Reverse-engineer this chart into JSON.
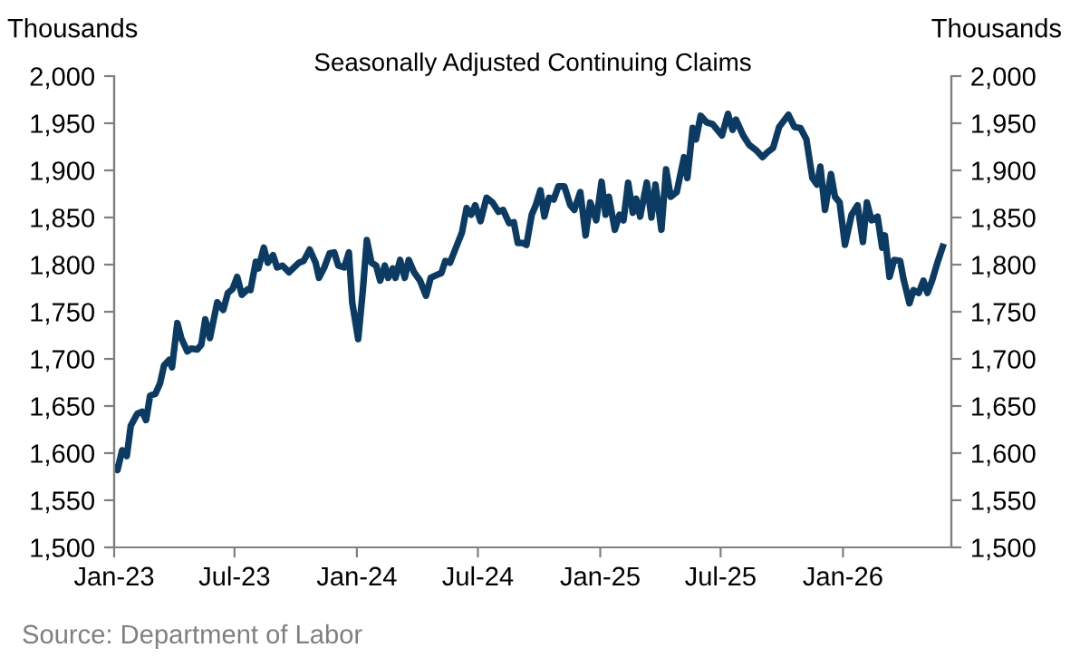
{
  "chart_data": {
    "type": "line",
    "title": "Seasonally Adjusted Continuing Claims",
    "ylabel": "Thousands",
    "y2label": "Thousands",
    "x": [
      "2023-01-01",
      "2023-01-06",
      "2023-01-13",
      "2023-01-20",
      "2023-01-26",
      "2023-02-05",
      "2023-02-12",
      "2023-02-18",
      "2023-02-24",
      "2023-03-04",
      "2023-03-11",
      "2023-03-17",
      "2023-03-25",
      "2023-03-29",
      "2023-04-06",
      "2023-04-12",
      "2023-04-21",
      "2023-04-27",
      "2023-05-06",
      "2023-05-12",
      "2023-05-18",
      "2023-05-25",
      "2023-06-05",
      "2023-06-14",
      "2023-06-21",
      "2023-06-28",
      "2023-07-05",
      "2023-07-12",
      "2023-07-21",
      "2023-07-25",
      "2023-08-02",
      "2023-08-06",
      "2023-08-14",
      "2023-08-20",
      "2023-08-28",
      "2023-09-03",
      "2023-09-11",
      "2023-09-21",
      "2023-09-27",
      "2023-10-06",
      "2023-10-13",
      "2023-10-22",
      "2023-10-31",
      "2023-11-05",
      "2023-11-13",
      "2023-11-21",
      "2023-11-28",
      "2023-12-04",
      "2023-12-13",
      "2023-12-20",
      "2023-12-25",
      "2024-01-03",
      "2024-01-10",
      "2024-01-16",
      "2024-01-23",
      "2024-01-30",
      "2024-02-05",
      "2024-02-12",
      "2024-02-17",
      "2024-02-24",
      "2024-02-28",
      "2024-03-06",
      "2024-03-13",
      "2024-03-19",
      "2024-03-27",
      "2024-04-05",
      "2024-04-14",
      "2024-04-21",
      "2024-04-30",
      "2024-05-07",
      "2024-05-13",
      "2024-05-20",
      "2024-05-29",
      "2024-06-07",
      "2024-06-14",
      "2024-06-21",
      "2024-06-27",
      "2024-07-05",
      "2024-07-14",
      "2024-07-23",
      "2024-08-01",
      "2024-08-08",
      "2024-08-17",
      "2024-08-24",
      "2024-08-30",
      "2024-09-06",
      "2024-09-12",
      "2024-09-20",
      "2024-09-26",
      "2024-10-03",
      "2024-10-09",
      "2024-10-16",
      "2024-10-23",
      "2024-10-30",
      "2024-11-08",
      "2024-11-17",
      "2024-11-23",
      "2024-12-02",
      "2024-12-10",
      "2024-12-17",
      "2024-12-26",
      "2025-01-03",
      "2025-01-09",
      "2025-01-14",
      "2025-01-23",
      "2025-01-30",
      "2025-02-05",
      "2025-02-12",
      "2025-02-19",
      "2025-02-24",
      "2025-03-02",
      "2025-03-12",
      "2025-03-19",
      "2025-03-25",
      "2025-04-03",
      "2025-04-10",
      "2025-04-17",
      "2025-04-26",
      "2025-05-07",
      "2025-05-12",
      "2025-05-20",
      "2025-05-25",
      "2025-06-01",
      "2025-06-10",
      "2025-06-19",
      "2025-07-03",
      "2025-07-12",
      "2025-07-19",
      "2025-07-24",
      "2025-08-04",
      "2025-08-13",
      "2025-08-24",
      "2025-09-02",
      "2025-09-09",
      "2025-09-18",
      "2025-09-27",
      "2025-10-11",
      "2025-10-20",
      "2025-10-29",
      "2025-11-07",
      "2025-11-16",
      "2025-11-23",
      "2025-11-28",
      "2025-12-05",
      "2025-12-14",
      "2025-12-20",
      "2025-12-27",
      "2026-01-04",
      "2026-01-14",
      "2026-01-23",
      "2026-01-31",
      "2026-02-06",
      "2026-02-13",
      "2026-02-22",
      "2026-03-01",
      "2026-03-05",
      "2026-03-12",
      "2026-03-19",
      "2026-03-28",
      "2026-04-02",
      "2026-04-11",
      "2026-04-17",
      "2026-04-25",
      "2026-05-02",
      "2026-05-08",
      "2026-05-15",
      "2026-05-23",
      "2026-05-31"
    ],
    "series": [
      {
        "color": "#0b3a63",
        "values": [
          1585,
          1582,
          1603,
          1597,
          1629,
          1642,
          1644,
          1635,
          1661,
          1663,
          1674,
          1693,
          1699,
          1691,
          1738,
          1722,
          1708,
          1711,
          1710,
          1715,
          1742,
          1722,
          1760,
          1752,
          1770,
          1774,
          1787,
          1768,
          1774,
          1773,
          1803,
          1796,
          1818,
          1802,
          1810,
          1797,
          1799,
          1792,
          1796,
          1802,
          1804,
          1816,
          1802,
          1786,
          1797,
          1812,
          1813,
          1799,
          1797,
          1813,
          1760,
          1721,
          1773,
          1826,
          1802,
          1799,
          1783,
          1799,
          1786,
          1796,
          1786,
          1805,
          1786,
          1805,
          1792,
          1783,
          1767,
          1786,
          1789,
          1791,
          1804,
          1802,
          1818,
          1834,
          1860,
          1853,
          1863,
          1846,
          1871,
          1866,
          1856,
          1858,
          1844,
          1845,
          1823,
          1823,
          1821,
          1853,
          1863,
          1879,
          1851,
          1871,
          1869,
          1883,
          1883,
          1863,
          1858,
          1877,
          1831,
          1866,
          1847,
          1888,
          1853,
          1872,
          1837,
          1853,
          1847,
          1887,
          1855,
          1870,
          1851,
          1887,
          1850,
          1885,
          1837,
          1901,
          1872,
          1877,
          1914,
          1892,
          1945,
          1933,
          1958,
          1951,
          1949,
          1937,
          1960,
          1943,
          1954,
          1937,
          1927,
          1921,
          1914,
          1919,
          1924,
          1946,
          1959,
          1946,
          1945,
          1933,
          1892,
          1885,
          1904,
          1858,
          1896,
          1872,
          1866,
          1821,
          1853,
          1863,
          1824,
          1866,
          1847,
          1851,
          1818,
          1831,
          1787,
          1805,
          1804,
          1785,
          1759,
          1773,
          1770,
          1783,
          1770,
          1783,
          1802,
          1819
        ]
      }
    ],
    "xlim": [
      "2023-01-01",
      "2026-06-13"
    ],
    "xticks": [
      {
        "value": "2023-01-01",
        "label": "Jan-23"
      },
      {
        "value": "2023-07-01",
        "label": "Jul-23"
      },
      {
        "value": "2024-01-01",
        "label": "Jan-24"
      },
      {
        "value": "2024-07-01",
        "label": "Jul-24"
      },
      {
        "value": "2025-01-01",
        "label": "Jan-25"
      },
      {
        "value": "2025-07-01",
        "label": "Jul-25"
      },
      {
        "value": "2026-01-01",
        "label": "Jan-26"
      }
    ],
    "ylim": [
      1500,
      2000
    ],
    "yticks": [
      {
        "value": 1500,
        "label": "1,500"
      },
      {
        "value": 1550,
        "label": "1,550"
      },
      {
        "value": 1600,
        "label": "1,600"
      },
      {
        "value": 1650,
        "label": "1,650"
      },
      {
        "value": 1700,
        "label": "1,700"
      },
      {
        "value": 1750,
        "label": "1,750"
      },
      {
        "value": 1800,
        "label": "1,800"
      },
      {
        "value": 1850,
        "label": "1,850"
      },
      {
        "value": 1900,
        "label": "1,900"
      },
      {
        "value": 1950,
        "label": "1,950"
      },
      {
        "value": 2000,
        "label": "2,000"
      }
    ],
    "y2lim": [
      1500,
      2000
    ],
    "y2ticks": [
      {
        "value": 1500,
        "label": "1,500"
      },
      {
        "value": 1550,
        "label": "1,550"
      },
      {
        "value": 1600,
        "label": "1,600"
      },
      {
        "value": 1650,
        "label": "1,650"
      },
      {
        "value": 1700,
        "label": "1,700"
      },
      {
        "value": 1750,
        "label": "1,750"
      },
      {
        "value": 1800,
        "label": "1,800"
      },
      {
        "value": 1850,
        "label": "1,850"
      },
      {
        "value": 1900,
        "label": "1,900"
      },
      {
        "value": 1950,
        "label": "1,950"
      },
      {
        "value": 2000,
        "label": "2,000"
      }
    ],
    "marker": "none",
    "line_style": "solid",
    "annotations": [
      "Source: Department of Labor"
    ]
  }
}
